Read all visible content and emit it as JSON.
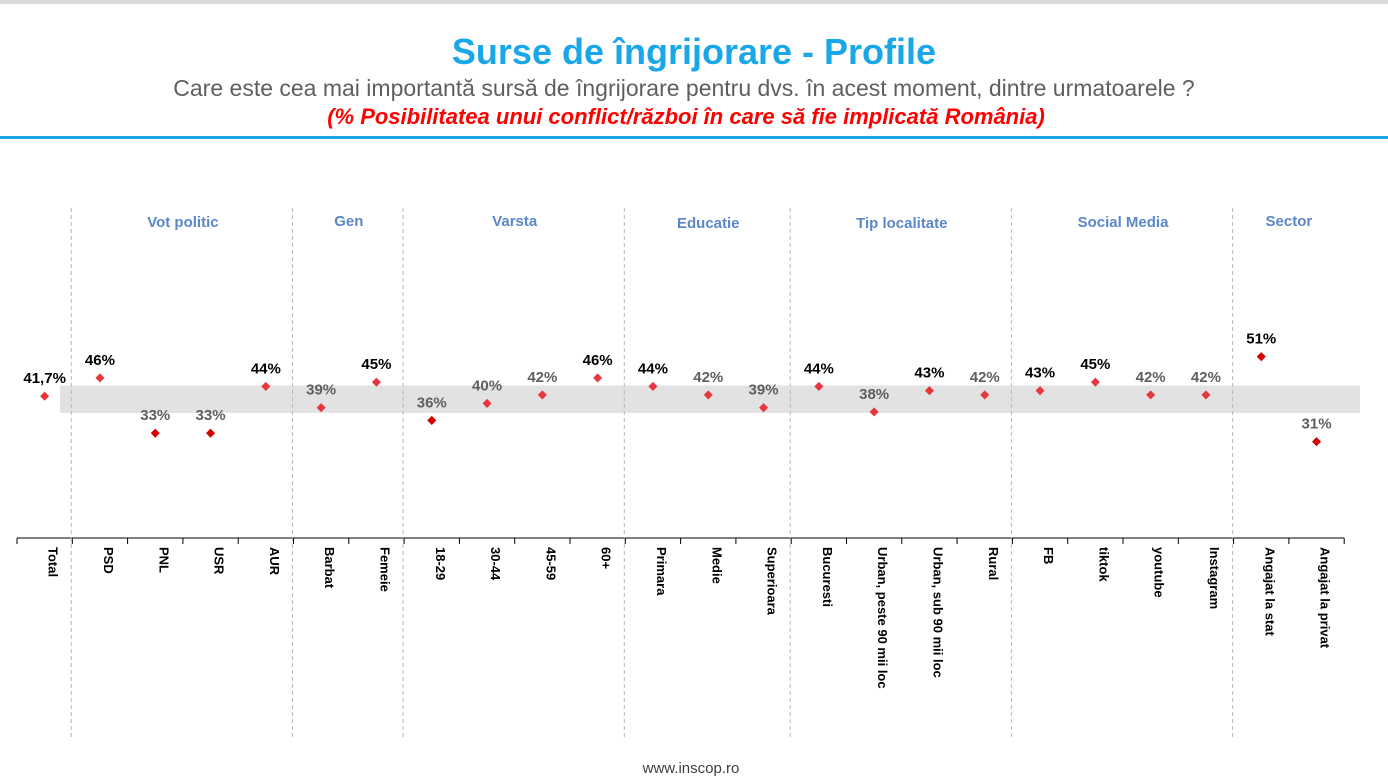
{
  "header": {
    "title": "Surse de îngrijorare - Profile",
    "subtitle": "Care este cea mai importantă sursă de îngrijorare pentru dvs. în acest moment, dintre urmatoarele ?",
    "highlight": "(% Posibilitatea unui conflict/război în care să fie implicată România)"
  },
  "footer": {
    "website": "www.inscop.ro"
  },
  "colors": {
    "title": "#1aa7e8",
    "highlight": "#ff0000",
    "group_label": "#5b87c7",
    "marker": "#e5373d",
    "band": "#e2e2e2"
  },
  "chart_data": {
    "type": "scatter",
    "title": "",
    "ylim": [
      0,
      100
    ],
    "reference_band": [
      38,
      44
    ],
    "groups": [
      {
        "name": "",
        "categories": [
          {
            "label": "Total",
            "value": 41.7,
            "display": "41,7%"
          }
        ]
      },
      {
        "name": "Vot politic",
        "categories": [
          {
            "label": "PSD",
            "value": 46,
            "display": "46%"
          },
          {
            "label": "PNL",
            "value": 33,
            "display": "33%"
          },
          {
            "label": "USR",
            "value": 33,
            "display": "33%"
          },
          {
            "label": "AUR",
            "value": 44,
            "display": "44%"
          }
        ]
      },
      {
        "name": "Gen",
        "categories": [
          {
            "label": "Barbat",
            "value": 39,
            "display": "39%"
          },
          {
            "label": "Femeie",
            "value": 45,
            "display": "45%"
          }
        ]
      },
      {
        "name": "Varsta",
        "categories": [
          {
            "label": "18-29",
            "value": 36,
            "display": "36%"
          },
          {
            "label": "30-44",
            "value": 40,
            "display": "40%"
          },
          {
            "label": "45-59",
            "value": 42,
            "display": "42%"
          },
          {
            "label": "60+",
            "value": 46,
            "display": "46%"
          }
        ]
      },
      {
        "name": "Educatie",
        "categories": [
          {
            "label": "Primara",
            "value": 44,
            "display": "44%"
          },
          {
            "label": "Medie",
            "value": 42,
            "display": "42%"
          },
          {
            "label": "Superioara",
            "value": 39,
            "display": "39%"
          }
        ]
      },
      {
        "name": "Tip localitate",
        "categories": [
          {
            "label": "Bucuresti",
            "value": 44,
            "display": "44%"
          },
          {
            "label": "Urban, peste 90 mii loc",
            "value": 38,
            "display": "38%"
          },
          {
            "label": "Urban, sub 90 mii loc",
            "value": 43,
            "display": "43%"
          },
          {
            "label": "Rural",
            "value": 42,
            "display": "42%"
          }
        ]
      },
      {
        "name": "Social Media",
        "categories": [
          {
            "label": "FB",
            "value": 43,
            "display": "43%"
          },
          {
            "label": "tiktok",
            "value": 45,
            "display": "45%"
          },
          {
            "label": "youtube",
            "value": 42,
            "display": "42%"
          },
          {
            "label": "Instagram",
            "value": 42,
            "display": "42%"
          }
        ]
      },
      {
        "name": "Sector",
        "categories": [
          {
            "label": "Angajat la stat",
            "value": 51,
            "display": "51%"
          },
          {
            "label": "Angajat la privat",
            "value": 31,
            "display": "31%"
          }
        ]
      }
    ]
  }
}
